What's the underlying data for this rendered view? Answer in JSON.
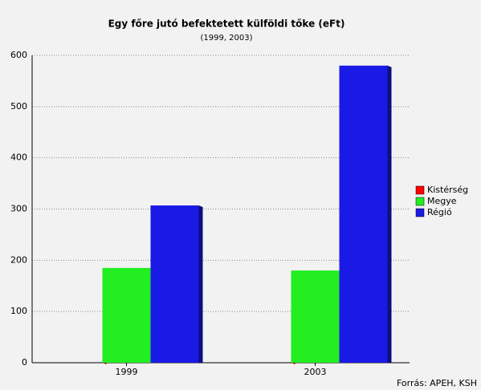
{
  "chart_data": {
    "type": "bar",
    "title": "Egy főre jutó befektetett külföldi tőke (eFt)",
    "subtitle": "(1999, 2003)",
    "categories": [
      "1999",
      "2003"
    ],
    "series": [
      {
        "name": "Kistérség",
        "color": "#ff0000",
        "values": [
          0,
          0
        ]
      },
      {
        "name": "Megye",
        "color": "#22ee22",
        "values": [
          185,
          180
        ]
      },
      {
        "name": "Régió",
        "color": "#1a1ae6",
        "values": [
          307,
          580
        ]
      }
    ],
    "ylim": [
      0,
      600
    ],
    "yticks": [
      0,
      100,
      200,
      300,
      400,
      500,
      600
    ],
    "grid": true,
    "legend": "right",
    "source": "Forrás: APEH, KSH"
  }
}
